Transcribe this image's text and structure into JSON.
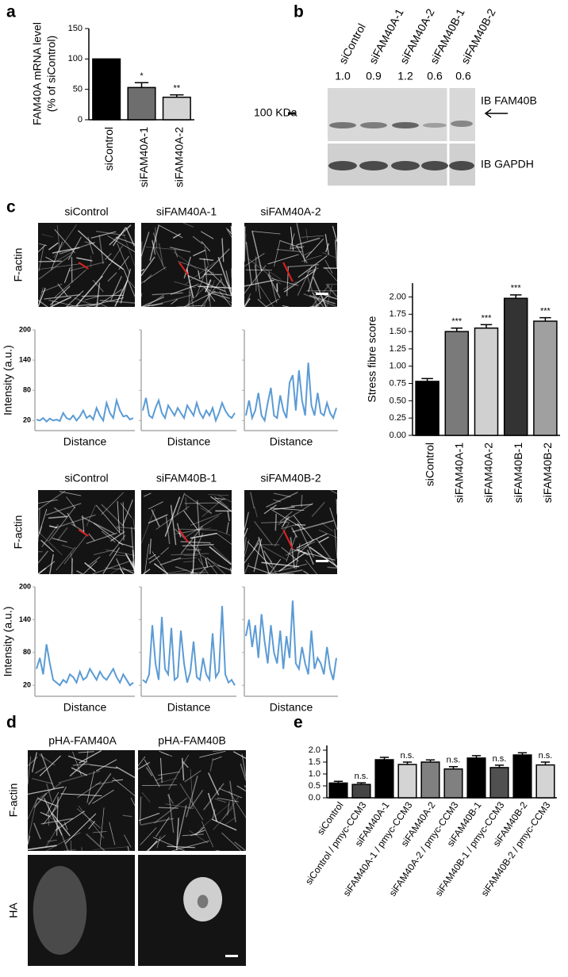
{
  "panel_labels": [
    "a",
    "b",
    "c",
    "d",
    "e"
  ],
  "blot": {
    "lanes": [
      "siControl",
      "siFAM40A-1",
      "siFAM40A-2",
      "siFAM40B-1",
      "siFAM40B-2"
    ],
    "quant": [
      "1.0",
      "0.9",
      "1.2",
      "0.6",
      "0.6"
    ],
    "marker": "100 KDa",
    "ib_top": "IB FAM40B",
    "ib_bottom": "IB GAPDH"
  },
  "images": {
    "c_row1_titles": [
      "siControl",
      "siFAM40A-1",
      "siFAM40A-2"
    ],
    "c_row2_titles": [
      "siControl",
      "siFAM40B-1",
      "siFAM40B-2"
    ],
    "c_row_label": "F-actin",
    "d_titles": [
      "pHA-FAM40A",
      "pHA-FAM40B"
    ],
    "d_row_labels": [
      "F-actin",
      "HA"
    ]
  },
  "chart_data": [
    {
      "type": "bar",
      "ylabel": [
        "FAM40A mRNA level",
        "(% of siControl)"
      ],
      "categories": [
        "siControl",
        "siFAM40A-1",
        "siFAM40A-2"
      ],
      "values": [
        100,
        53,
        37
      ],
      "errors": [
        null,
        8,
        4
      ],
      "annotations": [
        null,
        "*",
        "**"
      ],
      "colors": [
        "#000000",
        "#6e6e6e",
        "#d4d4d4"
      ],
      "ylim": [
        0,
        150
      ],
      "yticks": [
        0,
        50,
        100,
        150
      ]
    },
    {
      "type": "line",
      "ylabel": "Intensity (a.u.)",
      "xlabel": "Distance",
      "color": "#5b9bd5",
      "ylim": [
        0,
        200
      ],
      "yticks": [
        20,
        80,
        140,
        200
      ],
      "tick_labels": true,
      "values": [
        22,
        20,
        25,
        18,
        24,
        20,
        22,
        19,
        35,
        25,
        22,
        30,
        20,
        28,
        40,
        25,
        30,
        22,
        45,
        30,
        20,
        55,
        35,
        25,
        60,
        40,
        28,
        30,
        22,
        25
      ]
    },
    {
      "type": "line",
      "xlabel": "Distance",
      "color": "#5b9bd5",
      "ylim": [
        0,
        200
      ],
      "yticks": [
        20,
        80,
        140,
        200
      ],
      "tick_labels": false,
      "values": [
        40,
        65,
        30,
        25,
        45,
        60,
        35,
        25,
        50,
        40,
        30,
        45,
        35,
        25,
        50,
        40,
        30,
        55,
        35,
        25,
        40,
        30,
        45,
        20,
        35,
        55,
        40,
        30,
        25,
        35
      ]
    },
    {
      "type": "line",
      "xlabel": "Distance",
      "color": "#5b9bd5",
      "ylim": [
        0,
        200
      ],
      "yticks": [
        20,
        80,
        140,
        200
      ],
      "tick_labels": false,
      "values": [
        30,
        60,
        25,
        40,
        75,
        30,
        20,
        55,
        85,
        30,
        25,
        70,
        40,
        25,
        95,
        110,
        40,
        120,
        60,
        30,
        135,
        50,
        30,
        75,
        35,
        30,
        55,
        35,
        25,
        45
      ]
    },
    {
      "type": "line",
      "ylabel": "Intensity (a.u.)",
      "xlabel": "Distance",
      "color": "#5b9bd5",
      "ylim": [
        0,
        200
      ],
      "yticks": [
        20,
        80,
        140,
        200
      ],
      "tick_labels": true,
      "values": [
        50,
        70,
        40,
        95,
        60,
        30,
        25,
        20,
        30,
        25,
        40,
        35,
        25,
        45,
        30,
        35,
        50,
        40,
        30,
        45,
        35,
        30,
        40,
        50,
        35,
        25,
        40,
        30,
        20,
        25
      ]
    },
    {
      "type": "line",
      "xlabel": "Distance",
      "color": "#5b9bd5",
      "ylim": [
        0,
        200
      ],
      "yticks": [
        20,
        80,
        140,
        200
      ],
      "tick_labels": false,
      "values": [
        30,
        25,
        40,
        130,
        60,
        30,
        145,
        50,
        40,
        125,
        30,
        35,
        120,
        60,
        25,
        45,
        100,
        35,
        30,
        70,
        40,
        30,
        115,
        35,
        45,
        165,
        40,
        25,
        30,
        20
      ]
    },
    {
      "type": "line",
      "xlabel": "Distance",
      "color": "#5b9bd5",
      "ylim": [
        0,
        200
      ],
      "yticks": [
        20,
        80,
        140,
        200
      ],
      "tick_labels": false,
      "values": [
        110,
        140,
        90,
        130,
        70,
        150,
        100,
        60,
        130,
        80,
        60,
        120,
        50,
        110,
        70,
        175,
        60,
        50,
        90,
        60,
        40,
        120,
        50,
        70,
        60,
        40,
        90,
        50,
        30,
        70
      ]
    },
    {
      "type": "bar",
      "ylabel": "Stress fibre score",
      "categories": [
        "siControl",
        "siFAM40A-1",
        "siFAM40A-2",
        "siFAM40B-1",
        "siFAM40B-2"
      ],
      "values": [
        0.78,
        1.5,
        1.55,
        1.98,
        1.65
      ],
      "errors": [
        0.04,
        0.05,
        0.05,
        0.05,
        0.05
      ],
      "annotations": [
        null,
        "***",
        "***",
        "***",
        "***"
      ],
      "colors": [
        "#000000",
        "#7a7a7a",
        "#d0d0d0",
        "#333333",
        "#a0a0a0"
      ],
      "ylim": [
        0,
        2.2
      ],
      "yticks": [
        {
          "value": 0,
          "label": "0.00"
        },
        {
          "value": 0.25,
          "label": "0.25"
        },
        {
          "value": 0.5,
          "label": "0.50"
        },
        {
          "value": 0.75,
          "label": "0.75"
        },
        {
          "value": 1,
          "label": "1.00"
        },
        {
          "value": 1.25,
          "label": "1.25"
        },
        {
          "value": 1.5,
          "label": "1.50"
        },
        {
          "value": 1.75,
          "label": "1.75"
        },
        {
          "value": 2,
          "label": "2.00"
        }
      ]
    },
    {
      "type": "bar",
      "categories": [
        "siControl",
        "siControl / pmyc-CCM3",
        "siFAM40A-1",
        "siFAM40A-1 / pmyc-CCM3",
        "siFAM40A-2",
        "siFAM40A-2 / pmyc-CCM3",
        "siFAM40B-1",
        "siFAM40B-1 / pmyc-CCM3",
        "siFAM40B-2",
        "siFAM40B-2 / pmyc-CCM3"
      ],
      "values": [
        0.62,
        0.56,
        1.6,
        1.4,
        1.5,
        1.21,
        1.67,
        1.27,
        1.8,
        1.38
      ],
      "errors": [
        0.07,
        0.07,
        0.1,
        0.1,
        0.09,
        0.1,
        0.1,
        0.1,
        0.09,
        0.12
      ],
      "annotations": [
        null,
        "n.s.",
        null,
        "n.s.",
        null,
        "n.s.",
        null,
        "n.s.",
        null,
        "n.s."
      ],
      "colors": [
        "#000000",
        "#444444",
        "#000000",
        "#d4d4d4",
        "#808080",
        "#808080",
        "#000000",
        "#505050",
        "#000000",
        "#d4d4d4"
      ],
      "ylim": [
        0,
        2.2
      ],
      "yticks": [
        {
          "value": 0,
          "label": "0.0"
        },
        {
          "value": 0.5,
          "label": "0.5"
        },
        {
          "value": 1,
          "label": "1.0"
        },
        {
          "value": 1.5,
          "label": "1.5"
        },
        {
          "value": 2,
          "label": "2.0"
        }
      ]
    }
  ]
}
